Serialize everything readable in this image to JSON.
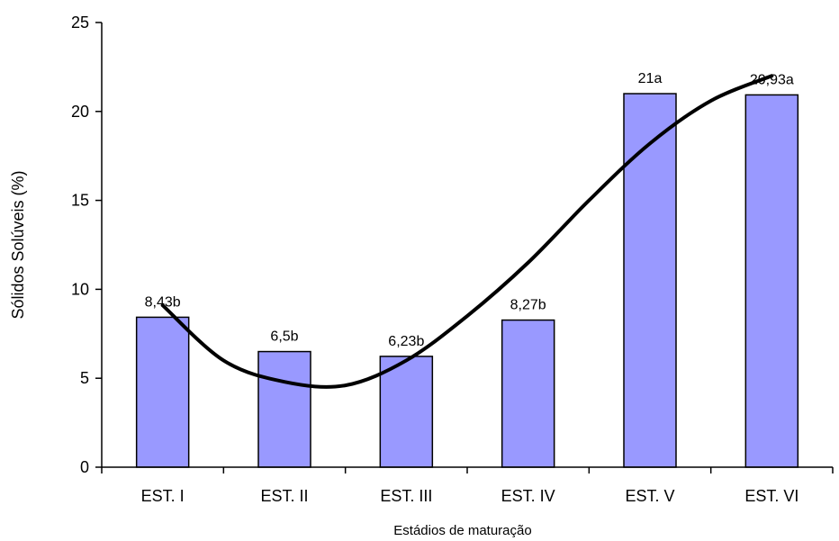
{
  "chart_data": {
    "type": "bar",
    "title": "",
    "xlabel": "Estádios de maturação",
    "ylabel": "Sólidos Solúveis (%)",
    "ylim": [
      0,
      25
    ],
    "yticks": [
      0,
      5,
      10,
      15,
      20,
      25
    ],
    "categories": [
      "EST. I",
      "EST. II",
      "EST. III",
      "EST. IV",
      "EST. V",
      "EST. VI"
    ],
    "values": [
      8.43,
      6.5,
      6.23,
      8.27,
      21,
      20.93
    ],
    "data_labels": [
      "8,43b",
      "6,5b",
      "6,23b",
      "8,27b",
      "21a",
      "20,93a"
    ],
    "bar_color": "#9999ff",
    "bar_edge_color": "#000000",
    "trendline": {
      "type": "polynomial",
      "color": "#000000",
      "x": [
        1,
        1.5,
        2,
        2.5,
        3,
        3.5,
        4,
        4.5,
        5,
        5.5,
        6
      ],
      "y": [
        9.1,
        6.0,
        4.8,
        4.6,
        6.0,
        8.5,
        11.5,
        15.0,
        18.2,
        20.6,
        22.0
      ]
    },
    "grid": false,
    "legend": "none"
  }
}
